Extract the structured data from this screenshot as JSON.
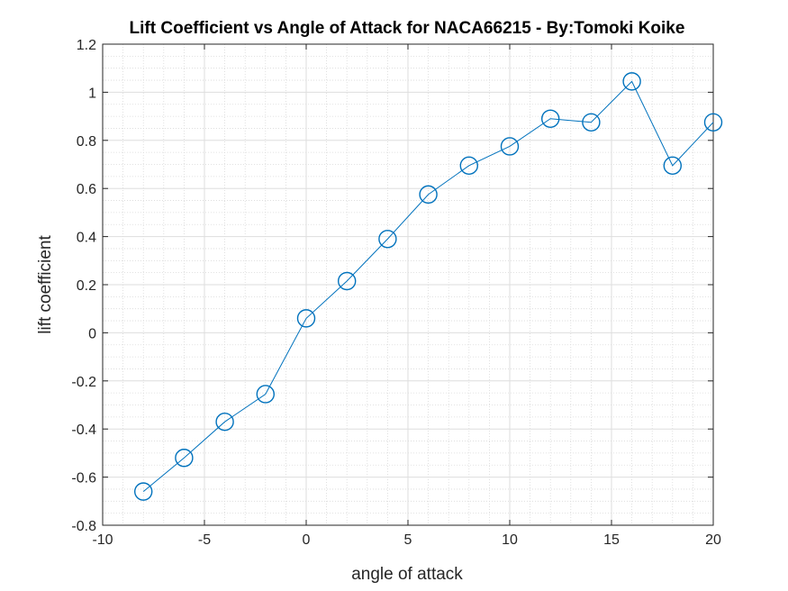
{
  "chart_data": {
    "type": "line",
    "title": "Lift Coefficient vs Angle of Attack for NACA66215 - By:Tomoki Koike",
    "xlabel": "angle of attack",
    "ylabel": "lift coefficient",
    "xlim": [
      -10,
      20
    ],
    "ylim": [
      -0.8,
      1.2
    ],
    "xticks": [
      -10,
      -5,
      0,
      5,
      10,
      15,
      20
    ],
    "yticks": [
      -0.8,
      -0.6,
      -0.4,
      -0.2,
      0,
      0.2,
      0.4,
      0.6,
      0.8,
      1,
      1.2
    ],
    "xtick_labels": [
      "-10",
      "-5",
      "0",
      "5",
      "10",
      "15",
      "20"
    ],
    "ytick_labels": [
      "-0.8",
      "-0.6",
      "-0.4",
      "-0.2",
      "0",
      "0.2",
      "0.4",
      "0.6",
      "0.8",
      "1",
      "1.2"
    ],
    "grid": true,
    "minor_grid": true,
    "marker": "circle",
    "series": [
      {
        "color": "#0072BD",
        "x": [
          -8,
          -6,
          -4,
          -2,
          0,
          2,
          4,
          6,
          8,
          10,
          12,
          14,
          16,
          18,
          20
        ],
        "y": [
          -0.66,
          -0.52,
          -0.37,
          -0.255,
          0.06,
          0.215,
          0.39,
          0.575,
          0.695,
          0.775,
          0.89,
          0.875,
          1.045,
          0.695,
          0.875
        ]
      }
    ]
  }
}
